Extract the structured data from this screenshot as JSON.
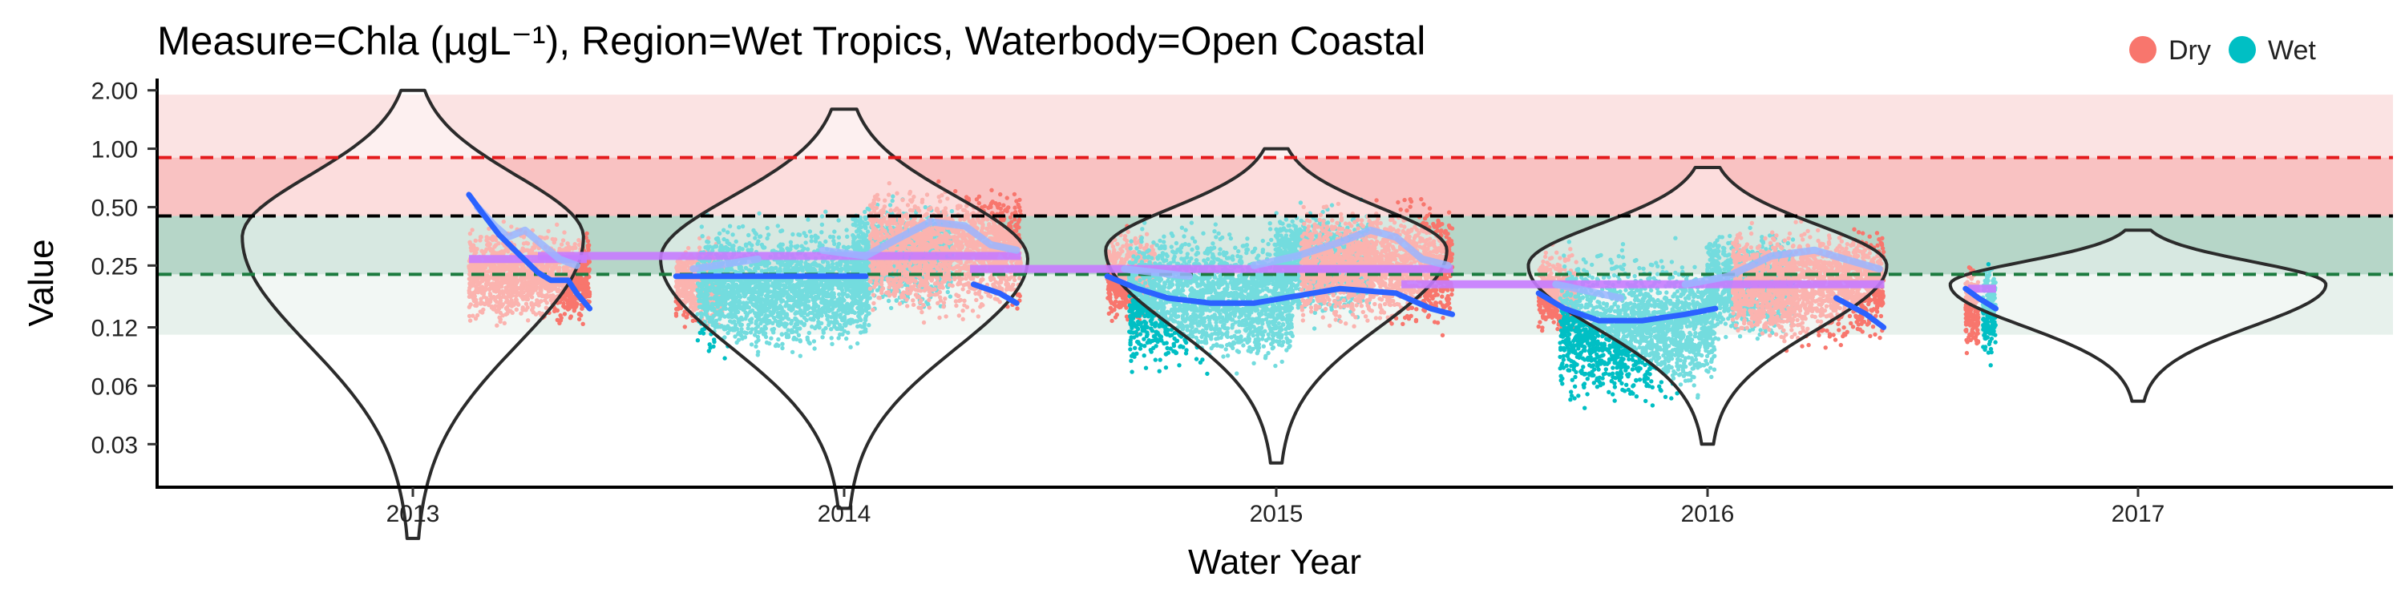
{
  "chart_data": {
    "type": "violin-scatter",
    "title": "Measure=Chla (µgL⁻¹), Region=Wet Tropics, Waterbody=Open Coastal",
    "xlabel": "Water Year",
    "ylabel": "Value",
    "x_categories": [
      "2013",
      "2014",
      "2015",
      "2016",
      "2017"
    ],
    "y_scale": "log",
    "y_ticks": [
      {
        "value": 2.0,
        "label": "2.00"
      },
      {
        "value": 1.0,
        "label": "1.00"
      },
      {
        "value": 0.5,
        "label": "0.50"
      },
      {
        "value": 0.25,
        "label": "0.25"
      },
      {
        "value": 0.12,
        "label": "0.12"
      },
      {
        "value": 0.06,
        "label": "0.06"
      },
      {
        "value": 0.03,
        "label": "0.03"
      }
    ],
    "ylim": [
      0.018,
      2.3
    ],
    "legend": {
      "position": "top-right",
      "entries": [
        {
          "name": "Dry",
          "color": "#F8766D"
        },
        {
          "name": "Wet",
          "color": "#00BFC4"
        }
      ]
    },
    "threshold_bands": [
      {
        "from": 0.9,
        "to": 1.9,
        "color": "#fbe3e3"
      },
      {
        "from": 0.45,
        "to": 0.9,
        "color": "#f9c2c2"
      },
      {
        "from": 0.225,
        "to": 0.45,
        "color": "#b6d6c8"
      },
      {
        "from": 0.11,
        "to": 0.225,
        "color": "#e7f1ec"
      }
    ],
    "reference_lines": [
      {
        "value": 0.9,
        "color": "#e41a1c"
      },
      {
        "value": 0.45,
        "color": "#000000"
      },
      {
        "value": 0.225,
        "color": "#1b7a3e"
      }
    ],
    "violins": [
      {
        "year": "2013",
        "min": 0.0098,
        "max": 2.0,
        "median": 0.35,
        "mode_value": 0.35,
        "half_width_years": 0.39
      },
      {
        "year": "2014",
        "min": 0.014,
        "max": 1.6,
        "median": 0.27,
        "mode_value": 0.27,
        "half_width_years": 0.42
      },
      {
        "year": "2015",
        "min": 0.024,
        "max": 1.0,
        "median": 0.3,
        "mode_value": 0.3,
        "half_width_years": 0.39
      },
      {
        "year": "2016",
        "min": 0.03,
        "max": 0.8,
        "median": 0.25,
        "mode_value": 0.25,
        "half_width_years": 0.41
      },
      {
        "year": "2017",
        "min": 0.05,
        "max": 0.38,
        "median": 0.2,
        "mode_value": 0.2,
        "half_width_years": 0.43
      }
    ],
    "point_groups": [
      {
        "season": "Dry",
        "x_start": 2013.13,
        "x_end": 2013.41,
        "center": 0.22,
        "spread": 1.35,
        "min": 0.045,
        "max": 1.9
      },
      {
        "season": "Dry",
        "x_start": 2013.61,
        "x_end": 2013.72,
        "center": 0.2,
        "spread": 1.3,
        "min": 0.04,
        "max": 0.55
      },
      {
        "season": "Wet",
        "x_start": 2013.66,
        "x_end": 2014.06,
        "center": 0.19,
        "spread": 1.5,
        "min": 0.014,
        "max": 1.3
      },
      {
        "season": "Wet",
        "x_start": 2014.02,
        "x_end": 2014.25,
        "center": 0.28,
        "spread": 1.4,
        "min": 0.06,
        "max": 1.0
      },
      {
        "season": "Dry",
        "x_start": 2014.06,
        "x_end": 2014.41,
        "center": 0.3,
        "spread": 1.5,
        "min": 0.07,
        "max": 1.6
      },
      {
        "season": "Dry",
        "x_start": 2014.61,
        "x_end": 2014.72,
        "center": 0.22,
        "spread": 1.35,
        "min": 0.05,
        "max": 0.6
      },
      {
        "season": "Wet",
        "x_start": 2014.66,
        "x_end": 2015.04,
        "center": 0.17,
        "spread": 1.55,
        "min": 0.05,
        "max": 1.5
      },
      {
        "season": "Wet",
        "x_start": 2015.0,
        "x_end": 2015.22,
        "center": 0.26,
        "spread": 1.4,
        "min": 0.08,
        "max": 0.8
      },
      {
        "season": "Dry",
        "x_start": 2015.06,
        "x_end": 2015.41,
        "center": 0.25,
        "spread": 1.45,
        "min": 0.045,
        "max": 0.9
      },
      {
        "season": "Dry",
        "x_start": 2015.61,
        "x_end": 2015.7,
        "center": 0.18,
        "spread": 1.3,
        "min": 0.08,
        "max": 0.35
      },
      {
        "season": "Wet",
        "x_start": 2015.66,
        "x_end": 2016.02,
        "center": 0.12,
        "spread": 1.6,
        "min": 0.03,
        "max": 0.7
      },
      {
        "season": "Wet",
        "x_start": 2016.0,
        "x_end": 2016.2,
        "center": 0.2,
        "spread": 1.4,
        "min": 0.05,
        "max": 0.5
      },
      {
        "season": "Dry",
        "x_start": 2016.06,
        "x_end": 2016.41,
        "center": 0.2,
        "spread": 1.45,
        "min": 0.045,
        "max": 0.6
      },
      {
        "season": "Dry",
        "x_start": 2016.6,
        "x_end": 2016.63,
        "center": 0.15,
        "spread": 1.35,
        "min": 0.045,
        "max": 0.36
      },
      {
        "season": "Wet",
        "x_start": 2016.64,
        "x_end": 2016.67,
        "center": 0.15,
        "spread": 1.35,
        "min": 0.07,
        "max": 0.35
      }
    ],
    "medians": [
      {
        "year": "2013",
        "value": 0.27
      },
      {
        "year": "2014",
        "value": 0.28
      },
      {
        "year": "2015",
        "value": 0.24
      },
      {
        "year": "2016",
        "value": 0.2
      },
      {
        "year": "2017",
        "value": 0.19
      }
    ],
    "trend_dark": [
      {
        "x": 2013.13,
        "y": 0.58
      },
      {
        "x": 2013.16,
        "y": 0.47
      },
      {
        "x": 2013.2,
        "y": 0.36
      },
      {
        "x": 2013.25,
        "y": 0.28
      },
      {
        "x": 2013.29,
        "y": 0.23
      },
      {
        "x": 2013.32,
        "y": 0.21
      },
      {
        "x": 2013.36,
        "y": 0.21
      },
      {
        "x": 2013.38,
        "y": 0.18
      },
      {
        "x": 2013.41,
        "y": 0.15
      },
      {
        "x": 2013.61,
        "y": 0.22
      },
      {
        "x": 2013.7,
        "y": 0.22
      },
      {
        "x": 2013.8,
        "y": 0.22
      },
      {
        "x": 2013.9,
        "y": 0.22
      },
      {
        "x": 2014.0,
        "y": 0.22
      },
      {
        "x": 2014.05,
        "y": 0.22
      },
      {
        "x": 2014.3,
        "y": 0.2
      },
      {
        "x": 2014.36,
        "y": 0.18
      },
      {
        "x": 2014.4,
        "y": 0.16
      },
      {
        "x": 2014.61,
        "y": 0.22
      },
      {
        "x": 2014.68,
        "y": 0.19
      },
      {
        "x": 2014.75,
        "y": 0.17
      },
      {
        "x": 2014.85,
        "y": 0.16
      },
      {
        "x": 2014.95,
        "y": 0.16
      },
      {
        "x": 2015.02,
        "y": 0.17
      },
      {
        "x": 2015.15,
        "y": 0.19
      },
      {
        "x": 2015.28,
        "y": 0.18
      },
      {
        "x": 2015.36,
        "y": 0.15
      },
      {
        "x": 2015.41,
        "y": 0.14
      },
      {
        "x": 2015.61,
        "y": 0.18
      },
      {
        "x": 2015.67,
        "y": 0.15
      },
      {
        "x": 2015.75,
        "y": 0.13
      },
      {
        "x": 2015.85,
        "y": 0.13
      },
      {
        "x": 2015.95,
        "y": 0.14
      },
      {
        "x": 2016.02,
        "y": 0.15
      },
      {
        "x": 2016.3,
        "y": 0.17
      },
      {
        "x": 2016.37,
        "y": 0.14
      },
      {
        "x": 2016.41,
        "y": 0.12
      },
      {
        "x": 2016.6,
        "y": 0.19
      },
      {
        "x": 2016.63,
        "y": 0.17
      },
      {
        "x": 2016.67,
        "y": 0.15
      }
    ],
    "trend_light": [
      {
        "x": 2013.15,
        "y": 0.5
      },
      {
        "x": 2013.19,
        "y": 0.4
      },
      {
        "x": 2013.22,
        "y": 0.35
      },
      {
        "x": 2013.26,
        "y": 0.38
      },
      {
        "x": 2013.3,
        "y": 0.32
      },
      {
        "x": 2013.34,
        "y": 0.27
      },
      {
        "x": 2013.38,
        "y": 0.25
      },
      {
        "x": 2013.65,
        "y": 0.24
      },
      {
        "x": 2013.8,
        "y": 0.27
      },
      {
        "x": 2013.95,
        "y": 0.3
      },
      {
        "x": 2014.05,
        "y": 0.28
      },
      {
        "x": 2014.12,
        "y": 0.34
      },
      {
        "x": 2014.2,
        "y": 0.42
      },
      {
        "x": 2014.28,
        "y": 0.4
      },
      {
        "x": 2014.34,
        "y": 0.32
      },
      {
        "x": 2014.4,
        "y": 0.3
      },
      {
        "x": 2014.65,
        "y": 0.24
      },
      {
        "x": 2014.8,
        "y": 0.22
      },
      {
        "x": 2014.95,
        "y": 0.25
      },
      {
        "x": 2015.05,
        "y": 0.28
      },
      {
        "x": 2015.15,
        "y": 0.33
      },
      {
        "x": 2015.22,
        "y": 0.38
      },
      {
        "x": 2015.28,
        "y": 0.35
      },
      {
        "x": 2015.34,
        "y": 0.27
      },
      {
        "x": 2015.4,
        "y": 0.25
      },
      {
        "x": 2015.65,
        "y": 0.2
      },
      {
        "x": 2015.8,
        "y": 0.17
      },
      {
        "x": 2015.95,
        "y": 0.2
      },
      {
        "x": 2016.05,
        "y": 0.22
      },
      {
        "x": 2016.15,
        "y": 0.28
      },
      {
        "x": 2016.25,
        "y": 0.3
      },
      {
        "x": 2016.32,
        "y": 0.27
      },
      {
        "x": 2016.4,
        "y": 0.24
      }
    ]
  }
}
